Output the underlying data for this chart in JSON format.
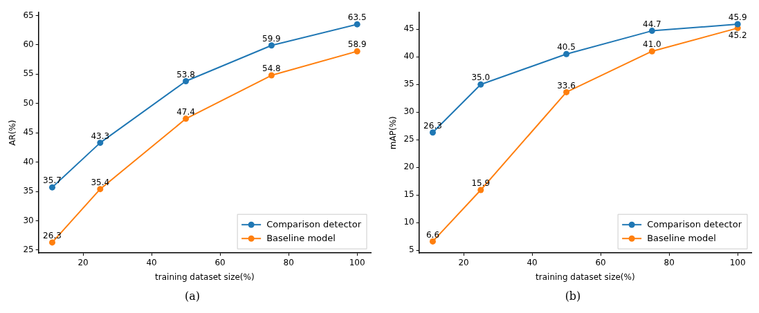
{
  "chart_data": [
    {
      "type": "line",
      "xlabel": "training dataset size(%)",
      "ylabel": "AR(%)",
      "x": [
        11,
        25,
        50,
        75,
        100
      ],
      "xlim": [
        7,
        104
      ],
      "xticks": [
        20,
        40,
        60,
        80,
        100
      ],
      "ylim": [
        24.5,
        65.5
      ],
      "yticks": [
        25,
        30,
        35,
        40,
        45,
        50,
        55,
        60,
        65
      ],
      "grid": false,
      "legend": "bottom right",
      "marker": "circle",
      "data_labels": true,
      "annotations": [
        "(a)"
      ],
      "series": [
        {
          "name": "Comparison detector",
          "color": "#1f77b4",
          "values": [
            35.7,
            43.3,
            53.8,
            59.9,
            63.5
          ]
        },
        {
          "name": "Baseline model",
          "color": "#ff7f0e",
          "values": [
            26.3,
            35.4,
            47.4,
            54.8,
            58.9
          ]
        }
      ]
    },
    {
      "type": "line",
      "xlabel": "training dataset size(%)",
      "ylabel": "mAP(%)",
      "x": [
        11,
        25,
        50,
        75,
        100
      ],
      "xlim": [
        7,
        104
      ],
      "xticks": [
        20,
        40,
        60,
        80,
        100
      ],
      "ylim": [
        4.5,
        48
      ],
      "yticks": [
        5,
        10,
        15,
        20,
        25,
        30,
        35,
        40,
        45
      ],
      "grid": false,
      "legend": "bottom right",
      "marker": "circle",
      "annotations": [
        "(b)"
      ],
      "series": [
        {
          "name": "Comparison detector",
          "color": "#1f77b4",
          "values": [
            26.3,
            35.0,
            40.5,
            44.7,
            45.9
          ],
          "value_labels": [
            "26.3",
            "35.0",
            "40.5",
            "44.7",
            "45.9"
          ]
        },
        {
          "name": "Baseline model",
          "color": "#ff7f0e",
          "values": [
            6.6,
            15.9,
            33.6,
            41.0,
            45.2
          ],
          "value_labels": [
            "6.6",
            "15.9",
            "33.6",
            "41.0",
            "45.2"
          ]
        }
      ]
    }
  ]
}
